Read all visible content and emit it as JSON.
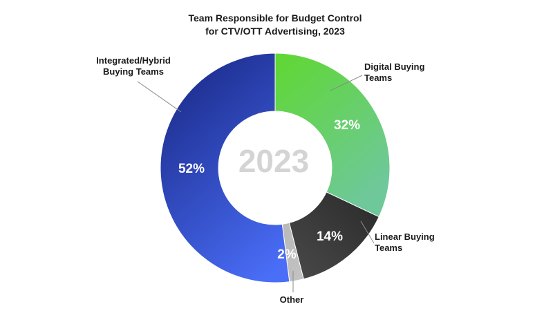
{
  "chart_data": {
    "type": "pie",
    "donut": true,
    "title": [
      "Team Responsible for Budget Control",
      "for CTV/OTT Advertising, 2023"
    ],
    "center_label": "2023",
    "legend": "none",
    "slices": [
      {
        "label": [
          "Digital Buying",
          "Teams"
        ],
        "value": 32,
        "value_label": "32%",
        "color_start": "#5fd830",
        "color_end": "#6ec89a"
      },
      {
        "label": [
          "Linear Buying",
          "Teams"
        ],
        "value": 14,
        "value_label": "14%",
        "color_start": "#2a2a2a",
        "color_end": "#4a4a4a"
      },
      {
        "label": [
          "Other"
        ],
        "value": 2,
        "value_label": "2%",
        "color_start": "#b8b8b8",
        "color_end": "#c4c4c4"
      },
      {
        "label": [
          "Integrated/Hybrid",
          "Buying Teams"
        ],
        "value": 52,
        "value_label": "52%",
        "color_start": "#1c2c8c",
        "color_end": "#4a6ef8"
      }
    ]
  }
}
